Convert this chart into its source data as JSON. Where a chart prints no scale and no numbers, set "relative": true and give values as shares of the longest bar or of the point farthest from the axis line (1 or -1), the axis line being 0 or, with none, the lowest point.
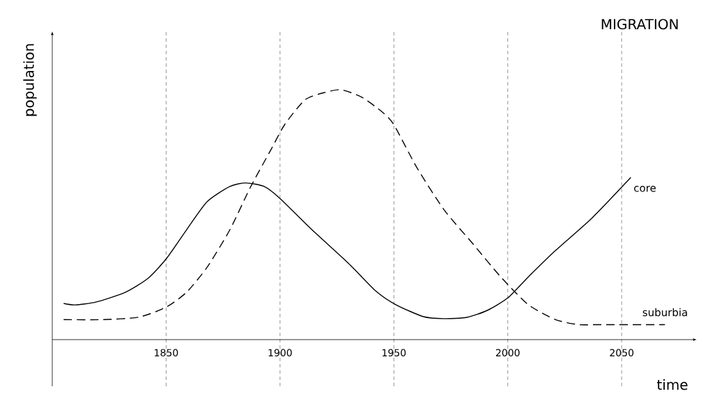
{
  "chart_data": {
    "type": "line",
    "title": "MIGRATION",
    "xlabel": "time",
    "ylabel": "population",
    "relative": true,
    "xlim": [
      1800,
      2083
    ],
    "xticks": [
      1850,
      1900,
      1950,
      2000,
      2050
    ],
    "grid": "x",
    "series": [
      {
        "name": "core",
        "color": "#000000",
        "line_style": "solid",
        "x": [
          1805,
          1810,
          1819,
          1832,
          1842,
          1850,
          1859,
          1868,
          1878,
          1885,
          1893,
          1900,
          1914,
          1930,
          1942,
          1951,
          1963,
          1972,
          1982,
          1991,
          2000,
          2009,
          2021,
          2037,
          2054
        ],
        "values": [
          0.145,
          0.139,
          0.15,
          0.189,
          0.245,
          0.323,
          0.44,
          0.552,
          0.613,
          0.627,
          0.613,
          0.565,
          0.44,
          0.306,
          0.195,
          0.139,
          0.092,
          0.084,
          0.089,
          0.117,
          0.167,
          0.251,
          0.357,
          0.487,
          0.649
        ]
      },
      {
        "name": "suburbia",
        "color": "#000000",
        "line_style": "dashed",
        "x": [
          1805,
          1822,
          1838,
          1850,
          1859,
          1868,
          1878,
          1887,
          1896,
          1902,
          1911,
          1920,
          1927,
          1936,
          1945,
          1950,
          1960,
          1972,
          1985,
          1997,
          2009,
          2021,
          2031,
          2040,
          2069
        ],
        "values": [
          0.08,
          0.08,
          0.09,
          0.13,
          0.19,
          0.29,
          0.44,
          0.61,
          0.76,
          0.86,
          0.96,
          0.99,
          1.0,
          0.97,
          0.91,
          0.86,
          0.69,
          0.52,
          0.38,
          0.25,
          0.14,
          0.08,
          0.06,
          0.06,
          0.06
        ]
      }
    ]
  }
}
